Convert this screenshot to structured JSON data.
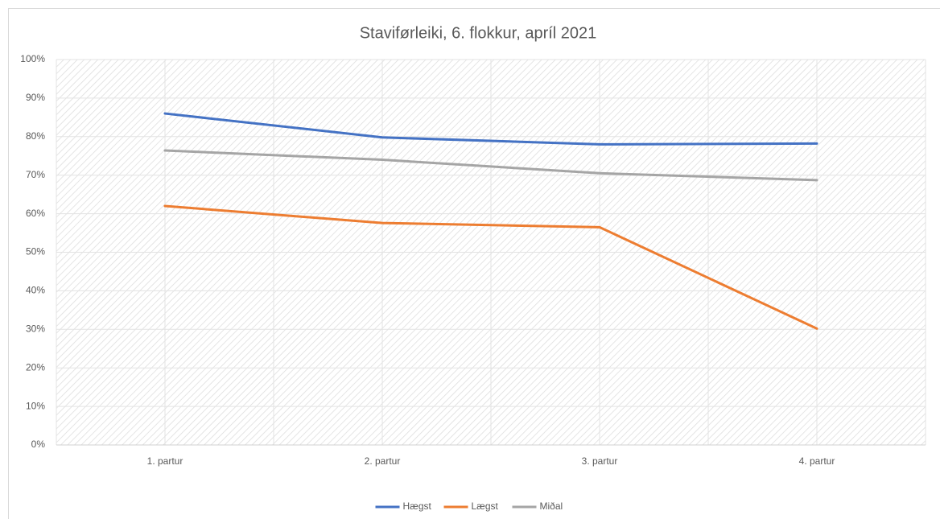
{
  "chart_data": {
    "type": "line",
    "title": "Stavifø­rleiki, 6. flokkur, apríl 2021",
    "categories": [
      "1. partur",
      "2. partur",
      "3. partur",
      "4. partur"
    ],
    "series": [
      {
        "name": "Hægst",
        "color": "#4472c4",
        "values": [
          86,
          79.8,
          78,
          78.2
        ]
      },
      {
        "name": "Lægst",
        "color": "#ed7d31",
        "values": [
          62,
          57.6,
          56.5,
          30.2
        ]
      },
      {
        "name": "Miðal",
        "color": "#a5a5a5",
        "values": [
          76.4,
          74,
          70.5,
          68.7
        ]
      }
    ],
    "ylim": [
      0,
      100
    ],
    "yticks": [
      {
        "value": 0,
        "label": "0%"
      },
      {
        "value": 10,
        "label": "10%"
      },
      {
        "value": 20,
        "label": "20%"
      },
      {
        "value": 30,
        "label": "30%"
      },
      {
        "value": 40,
        "label": "40%"
      },
      {
        "value": 50,
        "label": "50%"
      },
      {
        "value": 60,
        "label": "60%"
      },
      {
        "value": 70,
        "label": "70%"
      },
      {
        "value": 80,
        "label": "80%"
      },
      {
        "value": 90,
        "label": "90%"
      },
      {
        "value": 100,
        "label": "100%"
      }
    ],
    "grid": true,
    "legend": "bottom"
  }
}
